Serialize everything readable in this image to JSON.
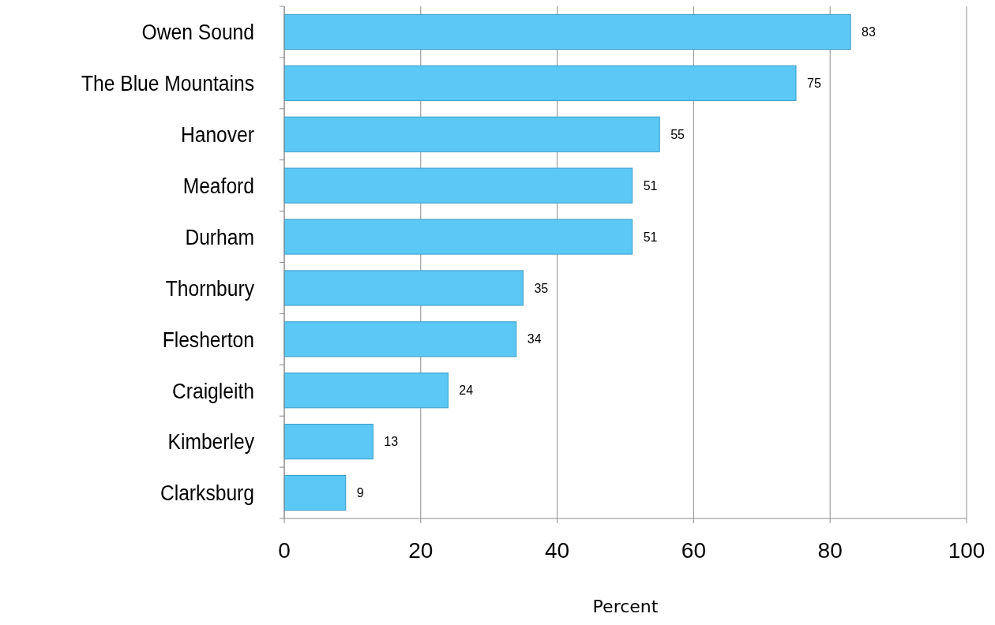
{
  "chart_data": {
    "type": "bar",
    "orientation": "horizontal",
    "xlabel": "Percent",
    "categories": [
      "Owen Sound",
      "The Blue Mountains",
      "Hanover",
      "Meaford",
      "Durham",
      "Thornbury",
      "Flesherton",
      "Craigleith",
      "Kimberley",
      "Clarksburg"
    ],
    "values": [
      83,
      75,
      55,
      51,
      51,
      35,
      34,
      24,
      13,
      9
    ],
    "color": "#5bc8f5",
    "xlim": [
      0,
      100
    ],
    "xticks": [
      0,
      20,
      40,
      60,
      80,
      100
    ],
    "grid": "x",
    "data_labels": true
  }
}
